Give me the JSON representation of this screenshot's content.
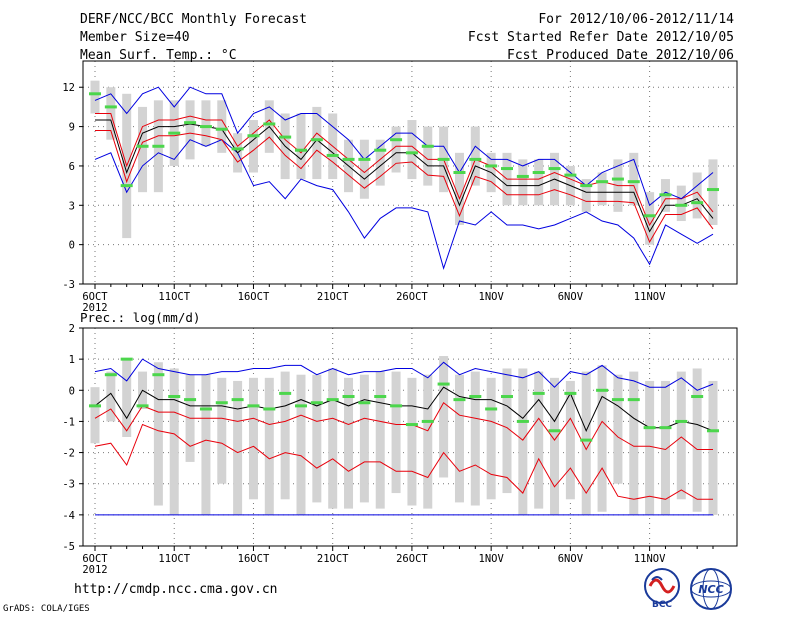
{
  "header": {
    "title": "DERF/NCC/BCC Monthly Forecast",
    "member_size": "Member Size=40",
    "variable1": "Mean Surf. Temp.: °C",
    "period": "For 2012/10/06-2012/11/14",
    "started": "Fcst Started Refer Date 2012/10/05",
    "produced": "Fcst Produced Date 2012/10/06"
  },
  "footer": {
    "url": "http://cmdp.ncc.cma.gov.cn",
    "credit": "GrADS: COLA/IGES",
    "logo1_text": "BCC",
    "logo2_text": "NCC"
  },
  "colors": {
    "box": "#d3d3d3",
    "mean": "#000000",
    "band": "#e8000b",
    "extreme": "#0000e0",
    "median": "#4cd64c",
    "grid": "#777777"
  },
  "chart_data": [
    {
      "type": "line",
      "title": "Mean Surf. Temp.: °C",
      "xlabel": "",
      "ylabel": "°C",
      "ylim": [
        -3,
        14
      ],
      "yticks": [
        -3,
        0,
        3,
        6,
        9,
        12
      ],
      "x_tick_labels": [
        "6OCT",
        "11OCT",
        "16OCT",
        "21OCT",
        "26OCT",
        "1NOV",
        "6NOV",
        "11NOV"
      ],
      "x_tick_sublabel": "2012",
      "days": 40,
      "series": [
        {
          "name": "max",
          "values": [
            6.5,
            7,
            4,
            6,
            7,
            6.5,
            8,
            7.5,
            8,
            7,
            4.5,
            4.8,
            3.5,
            5,
            4.5,
            4.2,
            2.5,
            0.5,
            2,
            2.8,
            2.8,
            2.5,
            -1.8,
            1.8,
            1.5,
            2.5,
            1.5,
            1.5,
            1.2,
            1.5,
            2,
            2.5,
            1.8,
            1.5,
            0.5,
            -1.5,
            1.5,
            0.8,
            0.1,
            0.8
          ]
        },
        {
          "name": "hi_band",
          "values": [
            10,
            10,
            6,
            9,
            9.5,
            9.5,
            9.8,
            9.5,
            9.5,
            7.5,
            8.5,
            9.5,
            8,
            7,
            8.5,
            7.5,
            6.5,
            5.5,
            6.5,
            7.5,
            7.5,
            6.5,
            6.5,
            3.5,
            6.5,
            6,
            5,
            5,
            5,
            5.5,
            5,
            4.5,
            4.8,
            4.5,
            4.5,
            1.5,
            3.5,
            3.5,
            4,
            2.5
          ]
        },
        {
          "name": "mean",
          "values": [
            9.5,
            9.5,
            5.5,
            8.5,
            9,
            9,
            9.2,
            9,
            8.8,
            7,
            8,
            9,
            7.5,
            6.5,
            8,
            7,
            6,
            5,
            6,
            7,
            7,
            6,
            6,
            3,
            6,
            5.5,
            4.5,
            4.5,
            4.5,
            5,
            4.5,
            4,
            4,
            4,
            4,
            1,
            3,
            3,
            3.5,
            2
          ]
        },
        {
          "name": "lo_band",
          "values": [
            8.7,
            8.7,
            4.8,
            7.8,
            8.3,
            8.3,
            8.5,
            8.3,
            8,
            6.3,
            7.2,
            8.2,
            6.8,
            5.8,
            7.2,
            6.3,
            5.3,
            4.3,
            5.2,
            6.2,
            6.3,
            5.3,
            5.2,
            2.2,
            5.2,
            4.8,
            3.8,
            3.8,
            3.8,
            4.2,
            3.8,
            3.3,
            3.3,
            3.3,
            3.2,
            0.2,
            2.3,
            2.3,
            2.8,
            1.2
          ]
        },
        {
          "name": "min",
          "values": [
            11,
            11.5,
            10,
            11.5,
            12,
            10.5,
            12,
            11.5,
            11.5,
            8.5,
            10,
            10.5,
            9.5,
            10,
            10,
            9,
            8,
            6.5,
            7.5,
            8.5,
            8.5,
            7.5,
            7.5,
            5.5,
            7.5,
            6.5,
            6.5,
            6,
            6.5,
            6.5,
            5.5,
            4.5,
            5.5,
            6,
            6.5,
            3,
            4,
            3.5,
            4.5,
            5.5
          ]
        },
        {
          "name": "median",
          "values": [
            11.5,
            10.5,
            4.5,
            7.5,
            7.5,
            8.5,
            9.3,
            9,
            8.8,
            7.3,
            8.3,
            9.2,
            8.2,
            7.2,
            8,
            6.8,
            6.5,
            6.5,
            7.2,
            8,
            7,
            7.5,
            6.5,
            5.5,
            6.5,
            6,
            5.8,
            5.2,
            5.5,
            5.8,
            5.3,
            4.5,
            4.8,
            5,
            4.8,
            2.2,
            3.8,
            3,
            3.2,
            4.2
          ]
        }
      ],
      "box_low": [
        10,
        8,
        0.5,
        4,
        4,
        6,
        6.5,
        7.5,
        7,
        5.5,
        5.5,
        7,
        5,
        5,
        5,
        5,
        4,
        3.5,
        4.5,
        5.5,
        5,
        4.5,
        4,
        1.5,
        4.5,
        4,
        3,
        3,
        3,
        3,
        3,
        2.5,
        3,
        2.5,
        3,
        0,
        2.5,
        1.8,
        2,
        1.5
      ],
      "box_high": [
        12.5,
        12,
        11.5,
        10.5,
        11,
        11,
        11,
        11,
        11,
        8.5,
        9.5,
        11,
        10,
        10,
        10.5,
        10,
        8,
        8,
        8,
        9,
        9.5,
        9,
        9,
        7,
        9,
        7,
        7,
        6.5,
        6.5,
        7,
        6,
        5,
        5.5,
        6.5,
        7,
        4,
        5,
        4.5,
        5.5,
        6.5
      ]
    },
    {
      "type": "line",
      "title": "Prec.: log(mm/d)",
      "xlabel": "",
      "ylabel": "log(mm/d)",
      "ylim": [
        -5,
        2
      ],
      "yticks": [
        -5,
        -4,
        -3,
        -2,
        -1,
        0,
        1,
        2
      ],
      "x_tick_labels": [
        "6OCT",
        "11OCT",
        "16OCT",
        "21OCT",
        "26OCT",
        "1NOV",
        "6NOV",
        "11NOV"
      ],
      "x_tick_sublabel": "2012",
      "days": 40,
      "series": [
        {
          "name": "floor",
          "values": [
            -4,
            -4,
            -4,
            -4,
            -4,
            -4,
            -4,
            -4,
            -4,
            -4,
            -4,
            -4,
            -4,
            -4,
            -4,
            -4,
            -4,
            -4,
            -4,
            -4,
            -4,
            -4,
            -4,
            -4,
            -4,
            -4,
            -4,
            -4,
            -4,
            -4,
            -4,
            -4,
            -4,
            -4,
            -4,
            -4,
            -4,
            -4,
            -4,
            -4
          ]
        },
        {
          "name": "lo_band",
          "values": [
            -1.8,
            -1.7,
            -2.4,
            -1.1,
            -1.3,
            -1.4,
            -1.8,
            -1.6,
            -1.7,
            -2,
            -1.8,
            -2.2,
            -2,
            -2.1,
            -2.5,
            -2.2,
            -2.6,
            -2.3,
            -2.3,
            -2.6,
            -2.6,
            -2.8,
            -2,
            -2.6,
            -2.4,
            -2.7,
            -2.8,
            -3.3,
            -2.2,
            -3.1,
            -2.5,
            -3.3,
            -2.5,
            -3.4,
            -3.5,
            -3.4,
            -3.5,
            -3.2,
            -3.5,
            -3.5
          ]
        },
        {
          "name": "hi_band",
          "values": [
            -0.9,
            -0.6,
            -1.3,
            -0.5,
            -0.7,
            -0.7,
            -0.9,
            -0.9,
            -0.9,
            -1,
            -0.9,
            -1.1,
            -1,
            -0.8,
            -1,
            -0.9,
            -1.1,
            -0.9,
            -1,
            -1.1,
            -1.1,
            -1.3,
            -0.4,
            -0.8,
            -0.9,
            -1,
            -1.2,
            -1.6,
            -0.9,
            -1.6,
            -0.9,
            -1.9,
            -1,
            -1.5,
            -1.8,
            -1.8,
            -1.9,
            -1.5,
            -1.9,
            -1.9
          ]
        },
        {
          "name": "mean",
          "values": [
            -0.5,
            -0.1,
            -0.9,
            0,
            -0.3,
            -0.3,
            -0.5,
            -0.5,
            -0.5,
            -0.6,
            -0.5,
            -0.6,
            -0.5,
            -0.3,
            -0.5,
            -0.3,
            -0.5,
            -0.3,
            -0.4,
            -0.5,
            -0.5,
            -0.6,
            0.1,
            -0.2,
            -0.3,
            -0.3,
            -0.5,
            -0.9,
            -0.3,
            -1,
            -0.1,
            -1.3,
            -0.2,
            -0.5,
            -0.9,
            -1.2,
            -1.2,
            -1,
            -1.1,
            -1.3
          ]
        },
        {
          "name": "max",
          "values": [
            0.6,
            0.7,
            0.3,
            1,
            0.7,
            0.6,
            0.5,
            0.5,
            0.6,
            0.6,
            0.7,
            0.7,
            0.8,
            0.8,
            0.5,
            0.7,
            0.5,
            0.6,
            0.6,
            0.7,
            0.7,
            0.4,
            0.9,
            0.5,
            0.7,
            0.6,
            0.5,
            0.4,
            0.6,
            0.1,
            0.6,
            0.5,
            0.8,
            0.4,
            0.3,
            0.1,
            0.1,
            0.4,
            0,
            0.2
          ]
        },
        {
          "name": "median",
          "values": [
            -0.5,
            0.5,
            1,
            -0.5,
            0.5,
            -0.2,
            -0.3,
            -0.6,
            -0.4,
            -0.3,
            -0.5,
            -0.6,
            -0.1,
            -0.5,
            -0.4,
            -0.3,
            -0.2,
            -0.4,
            -0.2,
            -0.5,
            -1.1,
            -1,
            0.2,
            -0.3,
            -0.2,
            -0.6,
            -0.2,
            -1,
            -0.1,
            -1.3,
            -0.1,
            -1.6,
            0,
            -0.3,
            -0.3,
            -1.2,
            -1.2,
            -1,
            -0.2,
            -1.3
          ]
        }
      ],
      "box_low": [
        -1.7,
        -1,
        -1.5,
        -0.6,
        -3.7,
        -4,
        -2.3,
        -4,
        -3,
        -4,
        -3.5,
        -4,
        -3.5,
        -4,
        -3.6,
        -3.8,
        -3.8,
        -3.6,
        -3.8,
        -3.3,
        -3.7,
        -3.8,
        -2.8,
        -3.6,
        -3.7,
        -3.5,
        -3.3,
        -4,
        -3.8,
        -4,
        -3.5,
        -4,
        -3.9,
        -3,
        -4,
        -4,
        -4,
        -3.5,
        -3.9,
        -4
      ],
      "box_high": [
        0.1,
        0.6,
        1,
        0.6,
        0.9,
        0.7,
        0.5,
        0.5,
        0.4,
        0.3,
        0.4,
        0.4,
        0.6,
        0.5,
        0.5,
        0.7,
        0.4,
        0.5,
        0.6,
        0.6,
        0.4,
        0.5,
        1.1,
        0.5,
        0.6,
        0.4,
        0.7,
        0.7,
        0.6,
        0.4,
        0.3,
        0.6,
        0.8,
        0.5,
        0.6,
        0.3,
        0.3,
        0.6,
        0.7,
        0.3
      ]
    }
  ]
}
